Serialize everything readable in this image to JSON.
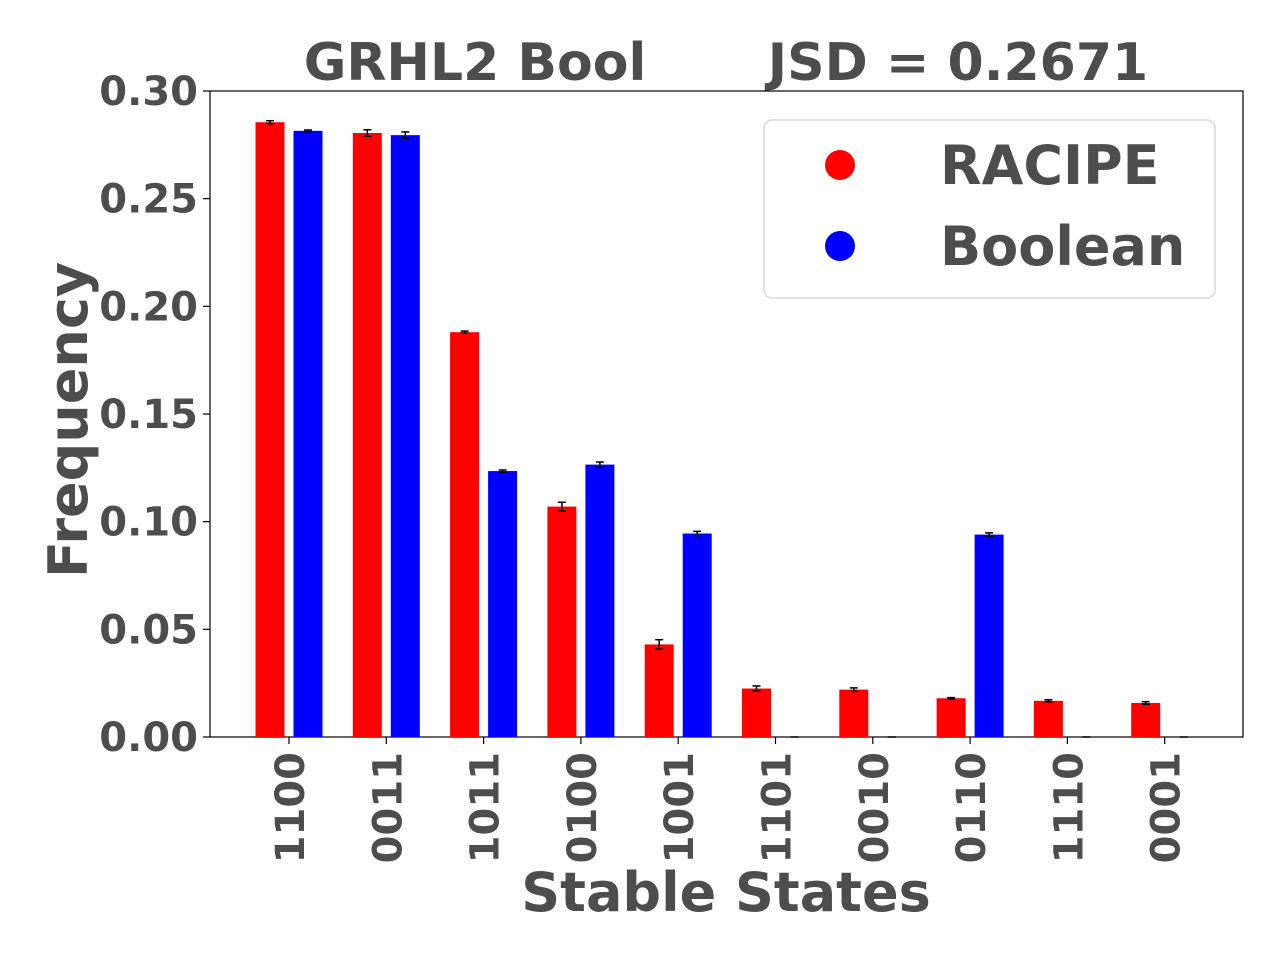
{
  "chart_data": {
    "type": "bar",
    "title_left": "GRHL2 Bool",
    "title_right": "JSD = 0.2671",
    "xlabel": "Stable States",
    "ylabel": "Frequency",
    "ylim": [
      0,
      0.3
    ],
    "yticks": [
      "0.00",
      "0.05",
      "0.10",
      "0.15",
      "0.20",
      "0.25",
      "0.30"
    ],
    "categories": [
      "1100",
      "0011",
      "1011",
      "0100",
      "1001",
      "1101",
      "0010",
      "0110",
      "1110",
      "0001"
    ],
    "legend_position": "top-right",
    "series": [
      {
        "name": "RACIPE",
        "color": "#ff0000",
        "values": [
          0.2855,
          0.2805,
          0.188,
          0.107,
          0.043,
          0.0225,
          0.022,
          0.018,
          0.0168,
          0.0158
        ],
        "errors": [
          0.0007,
          0.0015,
          0.0005,
          0.002,
          0.0022,
          0.0012,
          0.0008,
          0.0003,
          0.0005,
          0.0006
        ]
      },
      {
        "name": "Boolean",
        "color": "#0000ff",
        "values": [
          0.2815,
          0.2795,
          0.1235,
          0.1265,
          0.0945,
          0,
          0,
          0.094,
          0,
          0
        ],
        "errors": [
          0.0004,
          0.0015,
          0.0005,
          0.0012,
          0.001,
          0,
          0,
          0.0008,
          0,
          0
        ]
      }
    ],
    "grid": false
  }
}
